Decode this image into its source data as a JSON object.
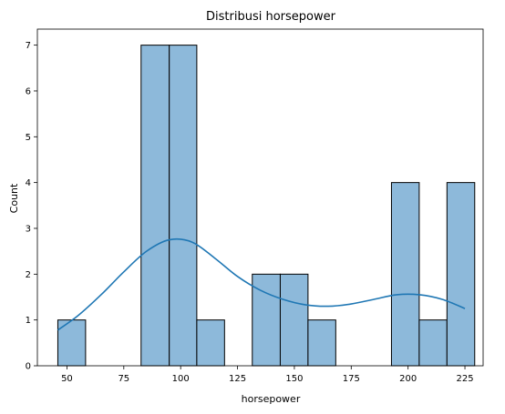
{
  "chart_data": {
    "type": "bar",
    "title": "Distribusi horsepower",
    "xlabel": "horsepower",
    "ylabel": "Count",
    "xlim": [
      37,
      233
    ],
    "ylim": [
      0,
      7.35
    ],
    "x_ticks": [
      50,
      75,
      100,
      125,
      150,
      175,
      200,
      225
    ],
    "y_ticks": [
      0,
      1,
      2,
      3,
      4,
      5,
      6,
      7
    ],
    "grid": false,
    "bin_edges": [
      46,
      58.2,
      70.4,
      82.6,
      95,
      107.1,
      119.3,
      131.5,
      143.8,
      156,
      168.2,
      180.4,
      192.7,
      204.9,
      217.1,
      229.3
    ],
    "values": [
      1,
      0,
      0,
      7,
      7,
      1,
      0,
      2,
      2,
      1,
      0,
      0,
      4,
      1,
      4
    ],
    "kde": {
      "x": [
        46,
        55,
        65,
        75,
        85,
        95,
        105,
        115,
        125,
        135,
        145,
        155,
        165,
        175,
        185,
        195,
        205,
        215,
        225
      ],
      "y": [
        0.78,
        1.1,
        1.55,
        2.05,
        2.5,
        2.75,
        2.7,
        2.35,
        1.95,
        1.65,
        1.45,
        1.33,
        1.3,
        1.35,
        1.45,
        1.55,
        1.55,
        1.45,
        1.25
      ]
    },
    "colors": {
      "bar_fill": "#8db9da",
      "bar_edge": "#000000",
      "kde_line": "#1f77b4"
    }
  }
}
